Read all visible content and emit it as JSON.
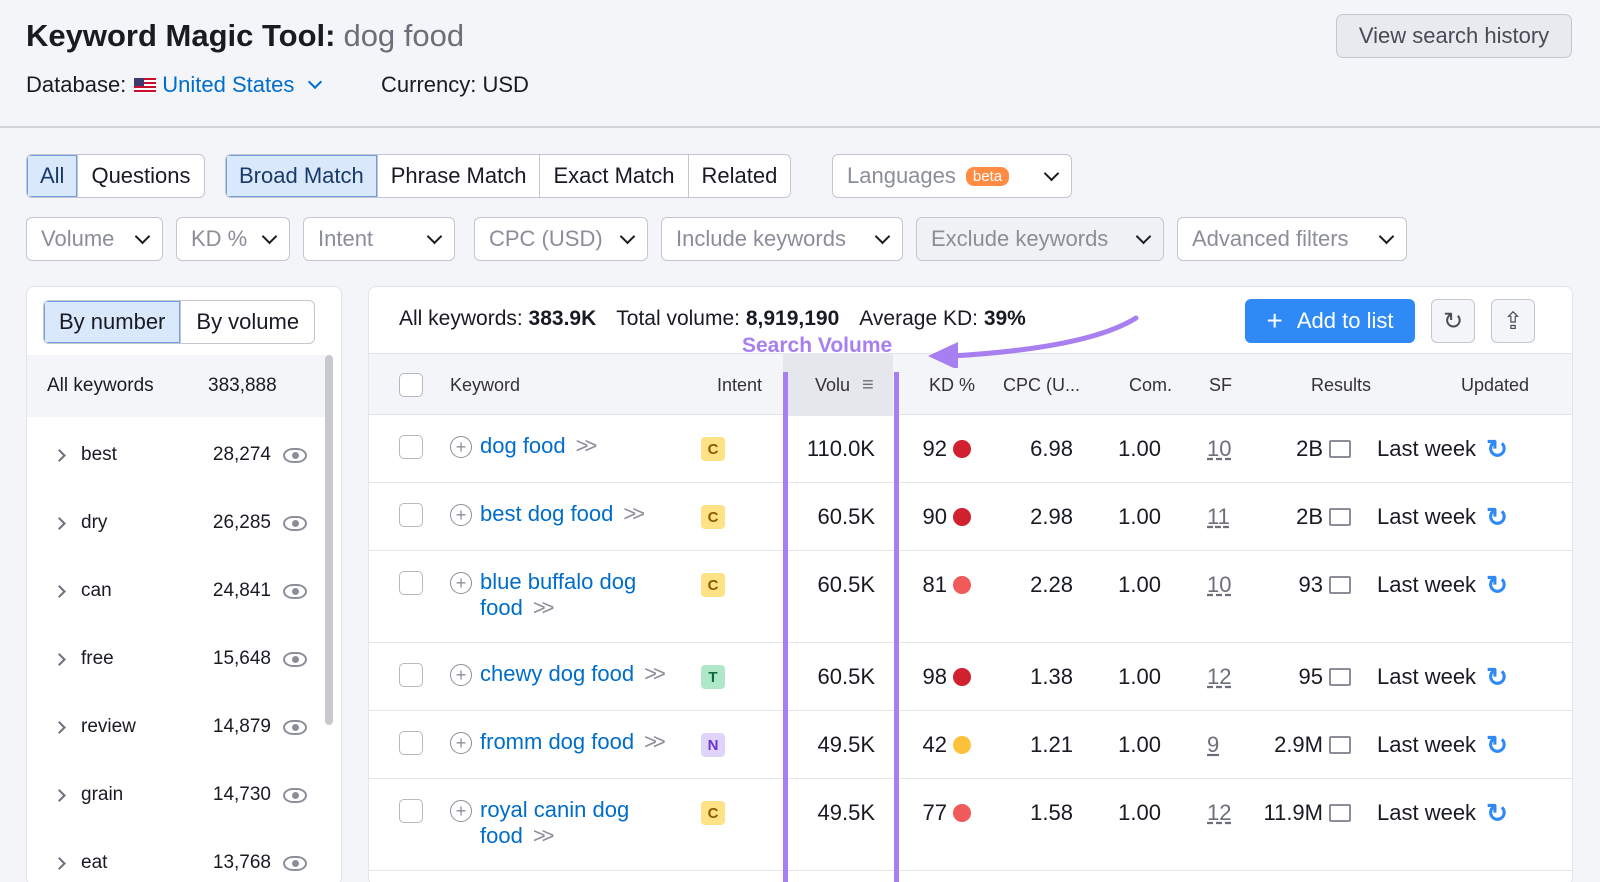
{
  "header": {
    "title": "Keyword Magic Tool:",
    "query": "dog food",
    "database_label": "Database:",
    "database_value": "United States",
    "currency": "Currency: USD",
    "history_button": "View search history"
  },
  "tabs_group1": [
    "All",
    "Questions"
  ],
  "tabs_group2": [
    "Broad Match",
    "Phrase Match",
    "Exact Match",
    "Related"
  ],
  "languages": {
    "label": "Languages",
    "badge": "beta"
  },
  "filters": {
    "volume": "Volume",
    "kd": "KD %",
    "intent": "Intent",
    "cpc": "CPC (USD)",
    "include": "Include keywords",
    "exclude": "Exclude keywords",
    "advanced": "Advanced filters"
  },
  "sidebar": {
    "by_number": "By number",
    "by_volume": "By volume",
    "all_label": "All keywords",
    "all_count": "383,888",
    "groups": [
      {
        "word": "best",
        "count": "28,274"
      },
      {
        "word": "dry",
        "count": "26,285"
      },
      {
        "word": "can",
        "count": "24,841"
      },
      {
        "word": "free",
        "count": "15,648"
      },
      {
        "word": "review",
        "count": "14,879"
      },
      {
        "word": "grain",
        "count": "14,730"
      },
      {
        "word": "eat",
        "count": "13,768"
      }
    ]
  },
  "stats": {
    "all_label": "All keywords:",
    "all_value": "383.9K",
    "total_label": "Total volume:",
    "total_value": "8,919,190",
    "kd_label": "Average KD:",
    "kd_value": "39%"
  },
  "add_to_list": "Add to list",
  "annotation": "Search Volume",
  "columns": {
    "keyword": "Keyword",
    "intent": "Intent",
    "volume": "Volu",
    "kd": "KD %",
    "cpc": "CPC (U...",
    "com": "Com.",
    "sf": "SF",
    "results": "Results",
    "updated": "Updated"
  },
  "rows": [
    {
      "k1": "dog food",
      "k2": "",
      "intent": "C",
      "volume": "110.0K",
      "kd": "92",
      "kdcolor": "#d1202f",
      "cpc": "6.98",
      "com": "1.00",
      "sf": "10",
      "results": "2B",
      "updated": "Last week"
    },
    {
      "k1": "best dog food",
      "k2": "",
      "intent": "C",
      "volume": "60.5K",
      "kd": "90",
      "kdcolor": "#d1202f",
      "cpc": "2.98",
      "com": "1.00",
      "sf": "11",
      "results": "2B",
      "updated": "Last week"
    },
    {
      "k1": "blue buffalo dog",
      "k2": "food",
      "intent": "C",
      "volume": "60.5K",
      "kd": "81",
      "kdcolor": "#f05a5a",
      "cpc": "2.28",
      "com": "1.00",
      "sf": "10",
      "results": "93",
      "updated": "Last week"
    },
    {
      "k1": "chewy dog food",
      "k2": "",
      "intent": "T",
      "volume": "60.5K",
      "kd": "98",
      "kdcolor": "#d1202f",
      "cpc": "1.38",
      "com": "1.00",
      "sf": "12",
      "results": "95",
      "updated": "Last week"
    },
    {
      "k1": "fromm dog food",
      "k2": "",
      "intent": "N",
      "volume": "49.5K",
      "kd": "42",
      "kdcolor": "#fdc23c",
      "cpc": "1.21",
      "com": "1.00",
      "sf": "9",
      "results": "2.9M",
      "updated": "Last week"
    },
    {
      "k1": "royal canin dog",
      "k2": "food",
      "intent": "C",
      "volume": "49.5K",
      "kd": "77",
      "kdcolor": "#f05a5a",
      "cpc": "1.58",
      "com": "1.00",
      "sf": "12",
      "results": "11.9M",
      "updated": "Last week"
    }
  ]
}
